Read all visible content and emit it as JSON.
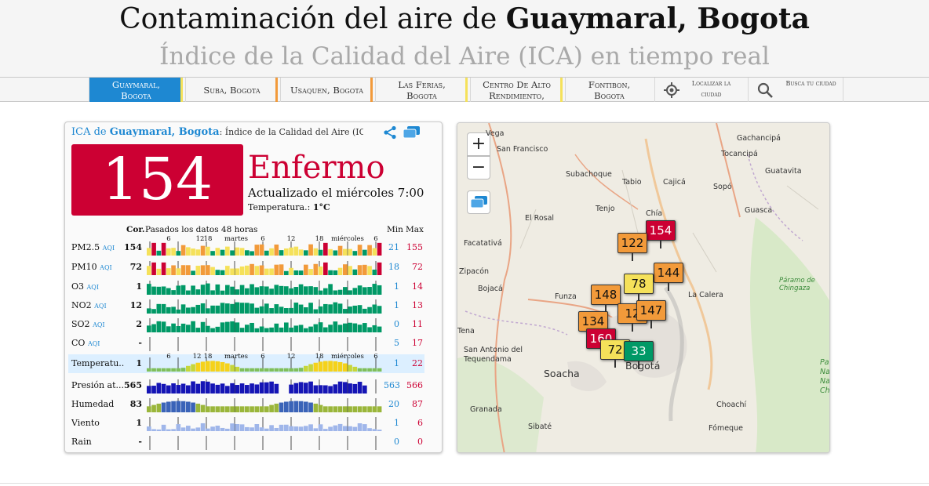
{
  "header": {
    "title_prefix": "Contaminación del aire de ",
    "title_city": "Guaymaral, Bogota",
    "subtitle": "Índice de la Calidad del Aire (ICA) en tiempo real"
  },
  "nav": {
    "items": [
      {
        "label": "Guaymaral, Bogota",
        "bar": "#f5e15a"
      },
      {
        "label": "Suba, Bogota",
        "bar": "#f29a3a"
      },
      {
        "label": "Usaquen, Bogota",
        "bar": "#f29a3a"
      },
      {
        "label": "Las Ferias, Bogota",
        "bar": "#f5e15a"
      },
      {
        "label": "Centro De Alto Rendimiento,",
        "bar": "#f5e15a"
      },
      {
        "label": "Fontibon, Bogota",
        "bar": "#f29a3a"
      }
    ],
    "locate_label": "Localizar la ciudad",
    "search_label": "Busca tu ciudad"
  },
  "panel": {
    "title_ica": "ICA de ",
    "title_city": "Guaymaral, Bogota",
    "title_rest": ": Índice de la Calidad del Aire (IC",
    "aqi": "154",
    "level": "Enfermo",
    "updated": "Actualizado el miércoles 7:00",
    "temp_label": "Temperatura.: ",
    "temp_value": "1°C",
    "table_head_cur": "Cor.",
    "table_head_past": "Pasados los datos 48 horas",
    "table_head_min": "Min",
    "table_head_max": "Max",
    "day1": "martes",
    "day2": "miércoles",
    "hour6": "6",
    "hour12": "12",
    "hour18": "18",
    "aqi_unit": "AQI"
  },
  "rows": [
    {
      "name": "PM2.5",
      "unit": "AQI",
      "cur": "154",
      "min": "21",
      "max": "155",
      "kind": "aqi"
    },
    {
      "name": "PM10",
      "unit": "AQI",
      "cur": "72",
      "min": "18",
      "max": "72",
      "kind": "aqi"
    },
    {
      "name": "O3",
      "unit": "AQI",
      "cur": "1",
      "min": "1",
      "max": "14",
      "kind": "green"
    },
    {
      "name": "NO2",
      "unit": "AQI",
      "cur": "12",
      "min": "1",
      "max": "13",
      "kind": "green"
    },
    {
      "name": "SO2",
      "unit": "AQI",
      "cur": "2",
      "min": "0",
      "max": "11",
      "kind": "green"
    },
    {
      "name": "CO",
      "unit": "AQI",
      "cur": "-",
      "min": "5",
      "max": "17",
      "kind": "none"
    },
    {
      "name": "Temperatu...",
      "unit": "",
      "cur": "1",
      "min": "1",
      "max": "22",
      "kind": "temp"
    },
    {
      "name": "Presión at...",
      "unit": "",
      "cur": "565",
      "min": "563",
      "max": "566",
      "kind": "pressure"
    },
    {
      "name": "Humedad",
      "unit": "",
      "cur": "83",
      "min": "20",
      "max": "87",
      "kind": "humidity"
    },
    {
      "name": "Viento",
      "unit": "",
      "cur": "1",
      "min": "1",
      "max": "6",
      "kind": "wind"
    },
    {
      "name": "Rain",
      "unit": "",
      "cur": "-",
      "min": "0",
      "max": "0",
      "kind": "none"
    }
  ],
  "map": {
    "zoom_in": "+",
    "zoom_out": "−",
    "places": [
      "Vega",
      "San Francisco",
      "Subachoque",
      "Tabio",
      "Cajicá",
      "Gachancipá",
      "Tocancipá",
      "Guatavita",
      "Sopó",
      "Guasca",
      "Tenjo",
      "El Rosal",
      "Chía",
      "Facatativá",
      "Zipacón",
      "Bojacá",
      "Funza",
      "La Calera",
      "Páramo de Chingaza",
      "Tena",
      "San Antonio del Tequendama",
      "Soacha",
      "Bogotá",
      "Granada",
      "Choachí",
      "Sibaté",
      "Fómeque",
      "Pa Na Na Chi"
    ],
    "markers": [
      {
        "value": "154",
        "color": "#cc0033",
        "text": "#ffffff"
      },
      {
        "value": "122",
        "color": "#f29a3a",
        "text": "#111111"
      },
      {
        "value": "144",
        "color": "#f29a3a",
        "text": "#111111"
      },
      {
        "value": "78",
        "color": "#f5e15a",
        "text": "#111111"
      },
      {
        "value": "148",
        "color": "#f29a3a",
        "text": "#111111"
      },
      {
        "value": "12",
        "color": "#f29a3a",
        "text": "#111111"
      },
      {
        "value": "147",
        "color": "#f29a3a",
        "text": "#111111"
      },
      {
        "value": "134",
        "color": "#f29a3a",
        "text": "#111111"
      },
      {
        "value": "160",
        "color": "#cc0033",
        "text": "#ffffff"
      },
      {
        "value": "72",
        "color": "#f5e15a",
        "text": "#111111"
      },
      {
        "value": "33",
        "color": "#009966",
        "text": "#ffffff"
      }
    ]
  }
}
